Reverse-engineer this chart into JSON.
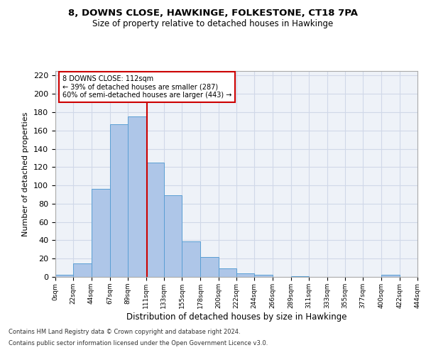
{
  "title_line1": "8, DOWNS CLOSE, HAWKINGE, FOLKESTONE, CT18 7PA",
  "title_line2": "Size of property relative to detached houses in Hawkinge",
  "xlabel": "Distribution of detached houses by size in Hawkinge",
  "ylabel": "Number of detached properties",
  "annotation_line1": "8 DOWNS CLOSE: 112sqm",
  "annotation_line2": "← 39% of detached houses are smaller (287)",
  "annotation_line3": "60% of semi-detached houses are larger (443) →",
  "property_size": 112,
  "bin_edges": [
    0,
    22,
    44,
    67,
    89,
    111,
    133,
    155,
    178,
    200,
    222,
    244,
    266,
    289,
    311,
    333,
    355,
    377,
    400,
    422,
    444
  ],
  "bar_heights": [
    2,
    15,
    96,
    167,
    175,
    125,
    89,
    39,
    22,
    9,
    4,
    2,
    0,
    1,
    0,
    0,
    0,
    0,
    2,
    0
  ],
  "bar_color": "#aec6e8",
  "bar_edge_color": "#5a9fd4",
  "annotation_box_color": "#cc0000",
  "vline_color": "#cc0000",
  "grid_color": "#d0d8e8",
  "background_color": "#eef2f8",
  "ylim": [
    0,
    225
  ],
  "yticks": [
    0,
    20,
    40,
    60,
    80,
    100,
    120,
    140,
    160,
    180,
    200,
    220
  ],
  "footnote1": "Contains HM Land Registry data © Crown copyright and database right 2024.",
  "footnote2": "Contains public sector information licensed under the Open Government Licence v3.0."
}
